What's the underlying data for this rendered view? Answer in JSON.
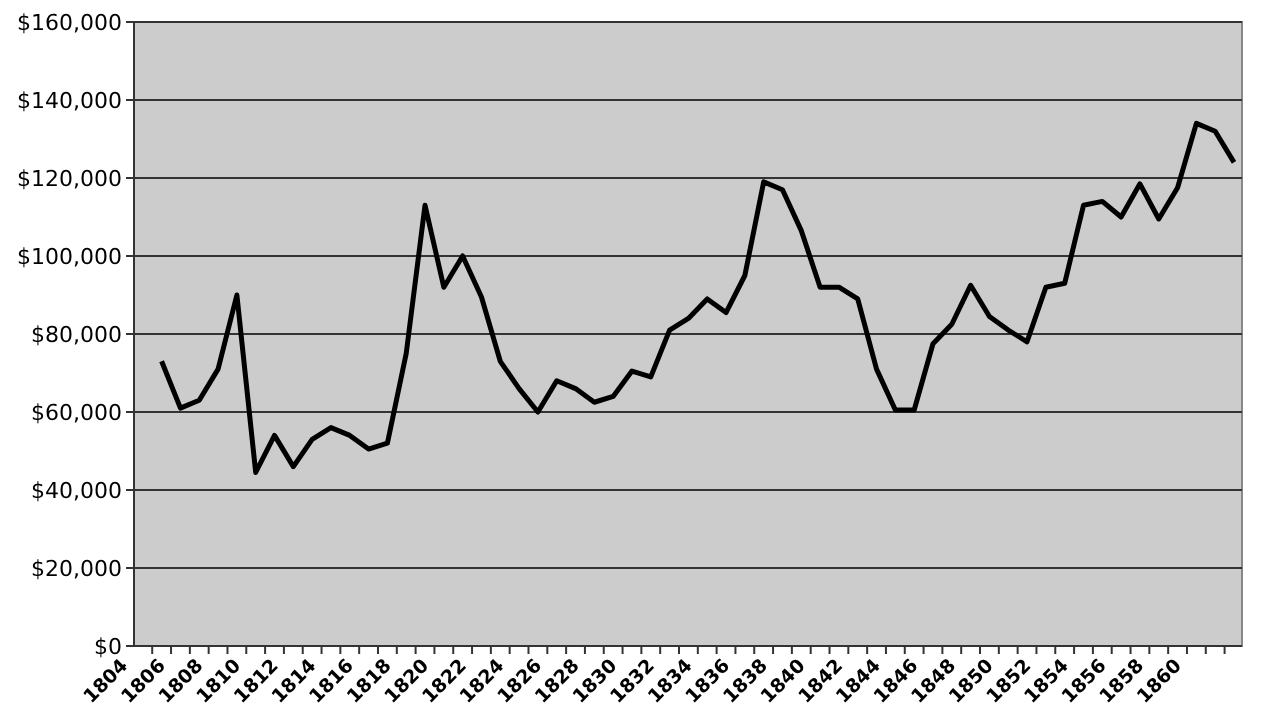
{
  "chart_data": {
    "type": "line",
    "categories": [
      "1804",
      null,
      "1806",
      null,
      "1808",
      null,
      "1810",
      null,
      "1812",
      null,
      "1814",
      null,
      "1816",
      null,
      "1818",
      null,
      "1820",
      null,
      "1822",
      null,
      "1824",
      null,
      "1826",
      null,
      "1828",
      null,
      "1830",
      null,
      "1832",
      null,
      "1834",
      null,
      "1836",
      null,
      "1838",
      null,
      "1840",
      null,
      "1842",
      null,
      "1844",
      null,
      "1846",
      null,
      "1848",
      null,
      "1850",
      null,
      "1852",
      null,
      "1854",
      null,
      "1856",
      null,
      "1858",
      null,
      "1860",
      null,
      null,
      null
    ],
    "series": [
      {
        "color": "#000000",
        "values": [
          null,
          null,
          73000,
          61000,
          63000,
          71000,
          90000,
          44500,
          54000,
          46000,
          53000,
          56000,
          54000,
          50500,
          52000,
          75000,
          113000,
          92000,
          100000,
          89500,
          73000,
          66000,
          60000,
          68000,
          66000,
          62500,
          64000,
          70500,
          69000,
          81000,
          84000,
          89000,
          85500,
          95000,
          119000,
          117000,
          106500,
          92000,
          92000,
          89000,
          71000,
          60500,
          60500,
          77500,
          82500,
          92500,
          84500,
          81000,
          78000,
          92000,
          93000,
          113000,
          114000,
          110000,
          118500,
          109500,
          117500,
          134000,
          132000,
          124000
        ]
      }
    ],
    "ylim": [
      0,
      160000
    ],
    "yticks": [
      {
        "value": 0,
        "label": "$0"
      },
      {
        "value": 20000,
        "label": "$20,000"
      },
      {
        "value": 40000,
        "label": "$40,000"
      },
      {
        "value": 60000,
        "label": "$60,000"
      },
      {
        "value": 80000,
        "label": "$80,000"
      },
      {
        "value": 100000,
        "label": "$100,000"
      },
      {
        "value": 120000,
        "label": "$120,000"
      },
      {
        "value": 140000,
        "label": "$140,000"
      },
      {
        "value": 160000,
        "label": "$160,000"
      }
    ],
    "grid": "y",
    "marker": "none",
    "line_style": "solid"
  }
}
